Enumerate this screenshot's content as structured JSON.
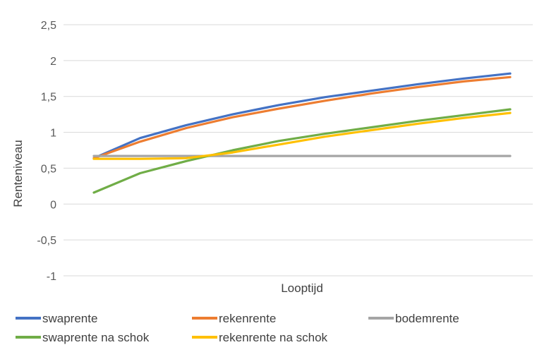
{
  "chart_data": {
    "type": "line",
    "title": "",
    "xlabel": "Looptijd",
    "ylabel": "Renteniveau",
    "ylim": [
      -1,
      2.5
    ],
    "yticks": [
      -1,
      -0.5,
      0,
      0.5,
      1,
      1.5,
      2,
      2.5
    ],
    "ytick_labels": [
      "-1",
      "-0,5",
      "0",
      "0,5",
      "1",
      "1,5",
      "2",
      "2,5"
    ],
    "grid": true,
    "legend": "bottom",
    "x": [
      1,
      2,
      3,
      4,
      5,
      6,
      7,
      8,
      9,
      10
    ],
    "series": [
      {
        "name": "swaprente",
        "color": "#4472c4",
        "values": [
          0.64,
          0.92,
          1.1,
          1.25,
          1.38,
          1.49,
          1.58,
          1.67,
          1.75,
          1.82
        ]
      },
      {
        "name": "rekenrente",
        "color": "#ed7d31",
        "values": [
          0.64,
          0.87,
          1.06,
          1.21,
          1.33,
          1.44,
          1.54,
          1.63,
          1.71,
          1.77
        ]
      },
      {
        "name": "bodemrente",
        "color": "#a5a5a5",
        "values": [
          0.67,
          0.67,
          0.67,
          0.67,
          0.67,
          0.67,
          0.67,
          0.67,
          0.67,
          0.67
        ]
      },
      {
        "name": "swaprente na schok",
        "color": "#70ad47",
        "values": [
          0.16,
          0.43,
          0.6,
          0.75,
          0.88,
          0.98,
          1.07,
          1.16,
          1.24,
          1.32
        ]
      },
      {
        "name": "rekenrente na schok",
        "color": "#ffc000",
        "values": [
          0.63,
          0.63,
          0.64,
          0.72,
          0.83,
          0.94,
          1.03,
          1.12,
          1.2,
          1.27
        ]
      }
    ]
  }
}
